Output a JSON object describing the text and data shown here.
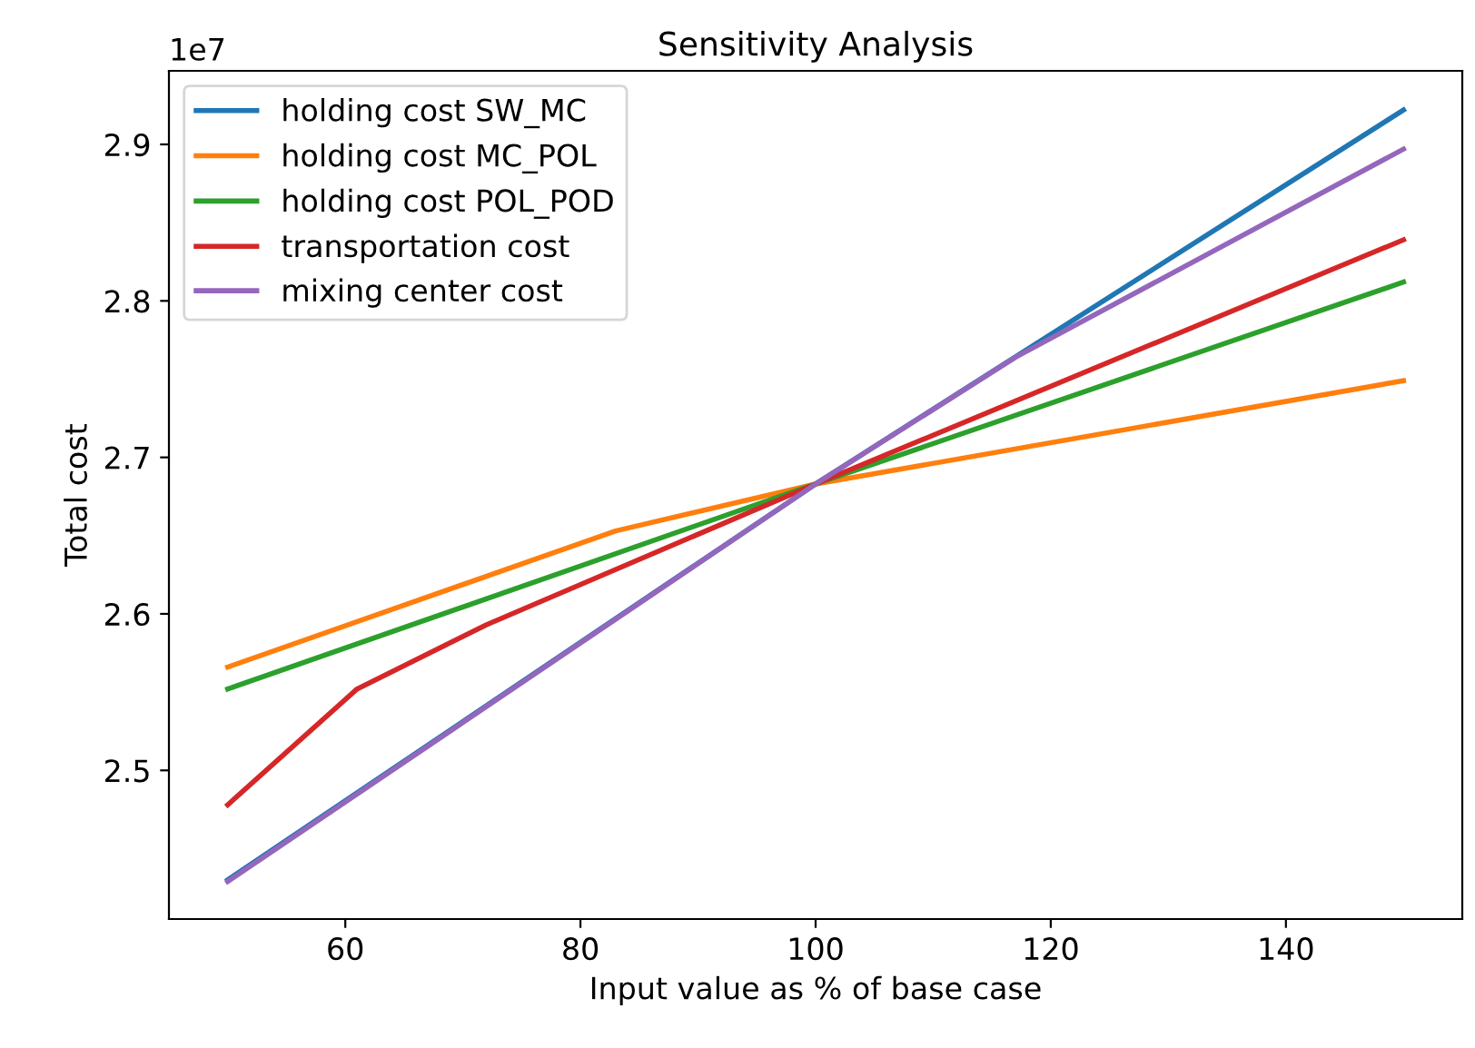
{
  "chart_data": {
    "type": "line",
    "title": "Sensitivity Analysis",
    "xlabel": "Input value as % of base case",
    "ylabel": "Total cost",
    "annotations": [
      "1e7"
    ],
    "xlim": [
      45,
      155
    ],
    "xticks": [
      60,
      80,
      100,
      120,
      140
    ],
    "ylim": [
      2.405,
      2.947
    ],
    "yticks": [
      2.5,
      2.6,
      2.7,
      2.8,
      2.9
    ],
    "grid": false,
    "legend": "top left",
    "line_style": "solid",
    "marker": "none",
    "series": [
      {
        "name": "holding cost SW_MC",
        "color": "#1f77b4",
        "x": [
          50,
          100,
          150
        ],
        "values": [
          2.43,
          2.683,
          2.922
        ]
      },
      {
        "name": "holding cost MC_POL",
        "color": "#ff7f0e",
        "x": [
          50,
          83,
          100,
          150
        ],
        "values": [
          2.566,
          2.653,
          2.683,
          2.749
        ]
      },
      {
        "name": "holding cost POL_POD",
        "color": "#2ca02c",
        "x": [
          50,
          100,
          150
        ],
        "values": [
          2.552,
          2.683,
          2.812
        ]
      },
      {
        "name": "transportation cost",
        "color": "#d62728",
        "x": [
          50,
          61,
          72,
          100,
          150
        ],
        "values": [
          2.478,
          2.552,
          2.593,
          2.683,
          2.839
        ]
      },
      {
        "name": "mixing center cost",
        "color": "#9467bd",
        "x": [
          50,
          100,
          117,
          150
        ],
        "values": [
          2.429,
          2.683,
          2.764,
          2.897
        ]
      }
    ]
  }
}
